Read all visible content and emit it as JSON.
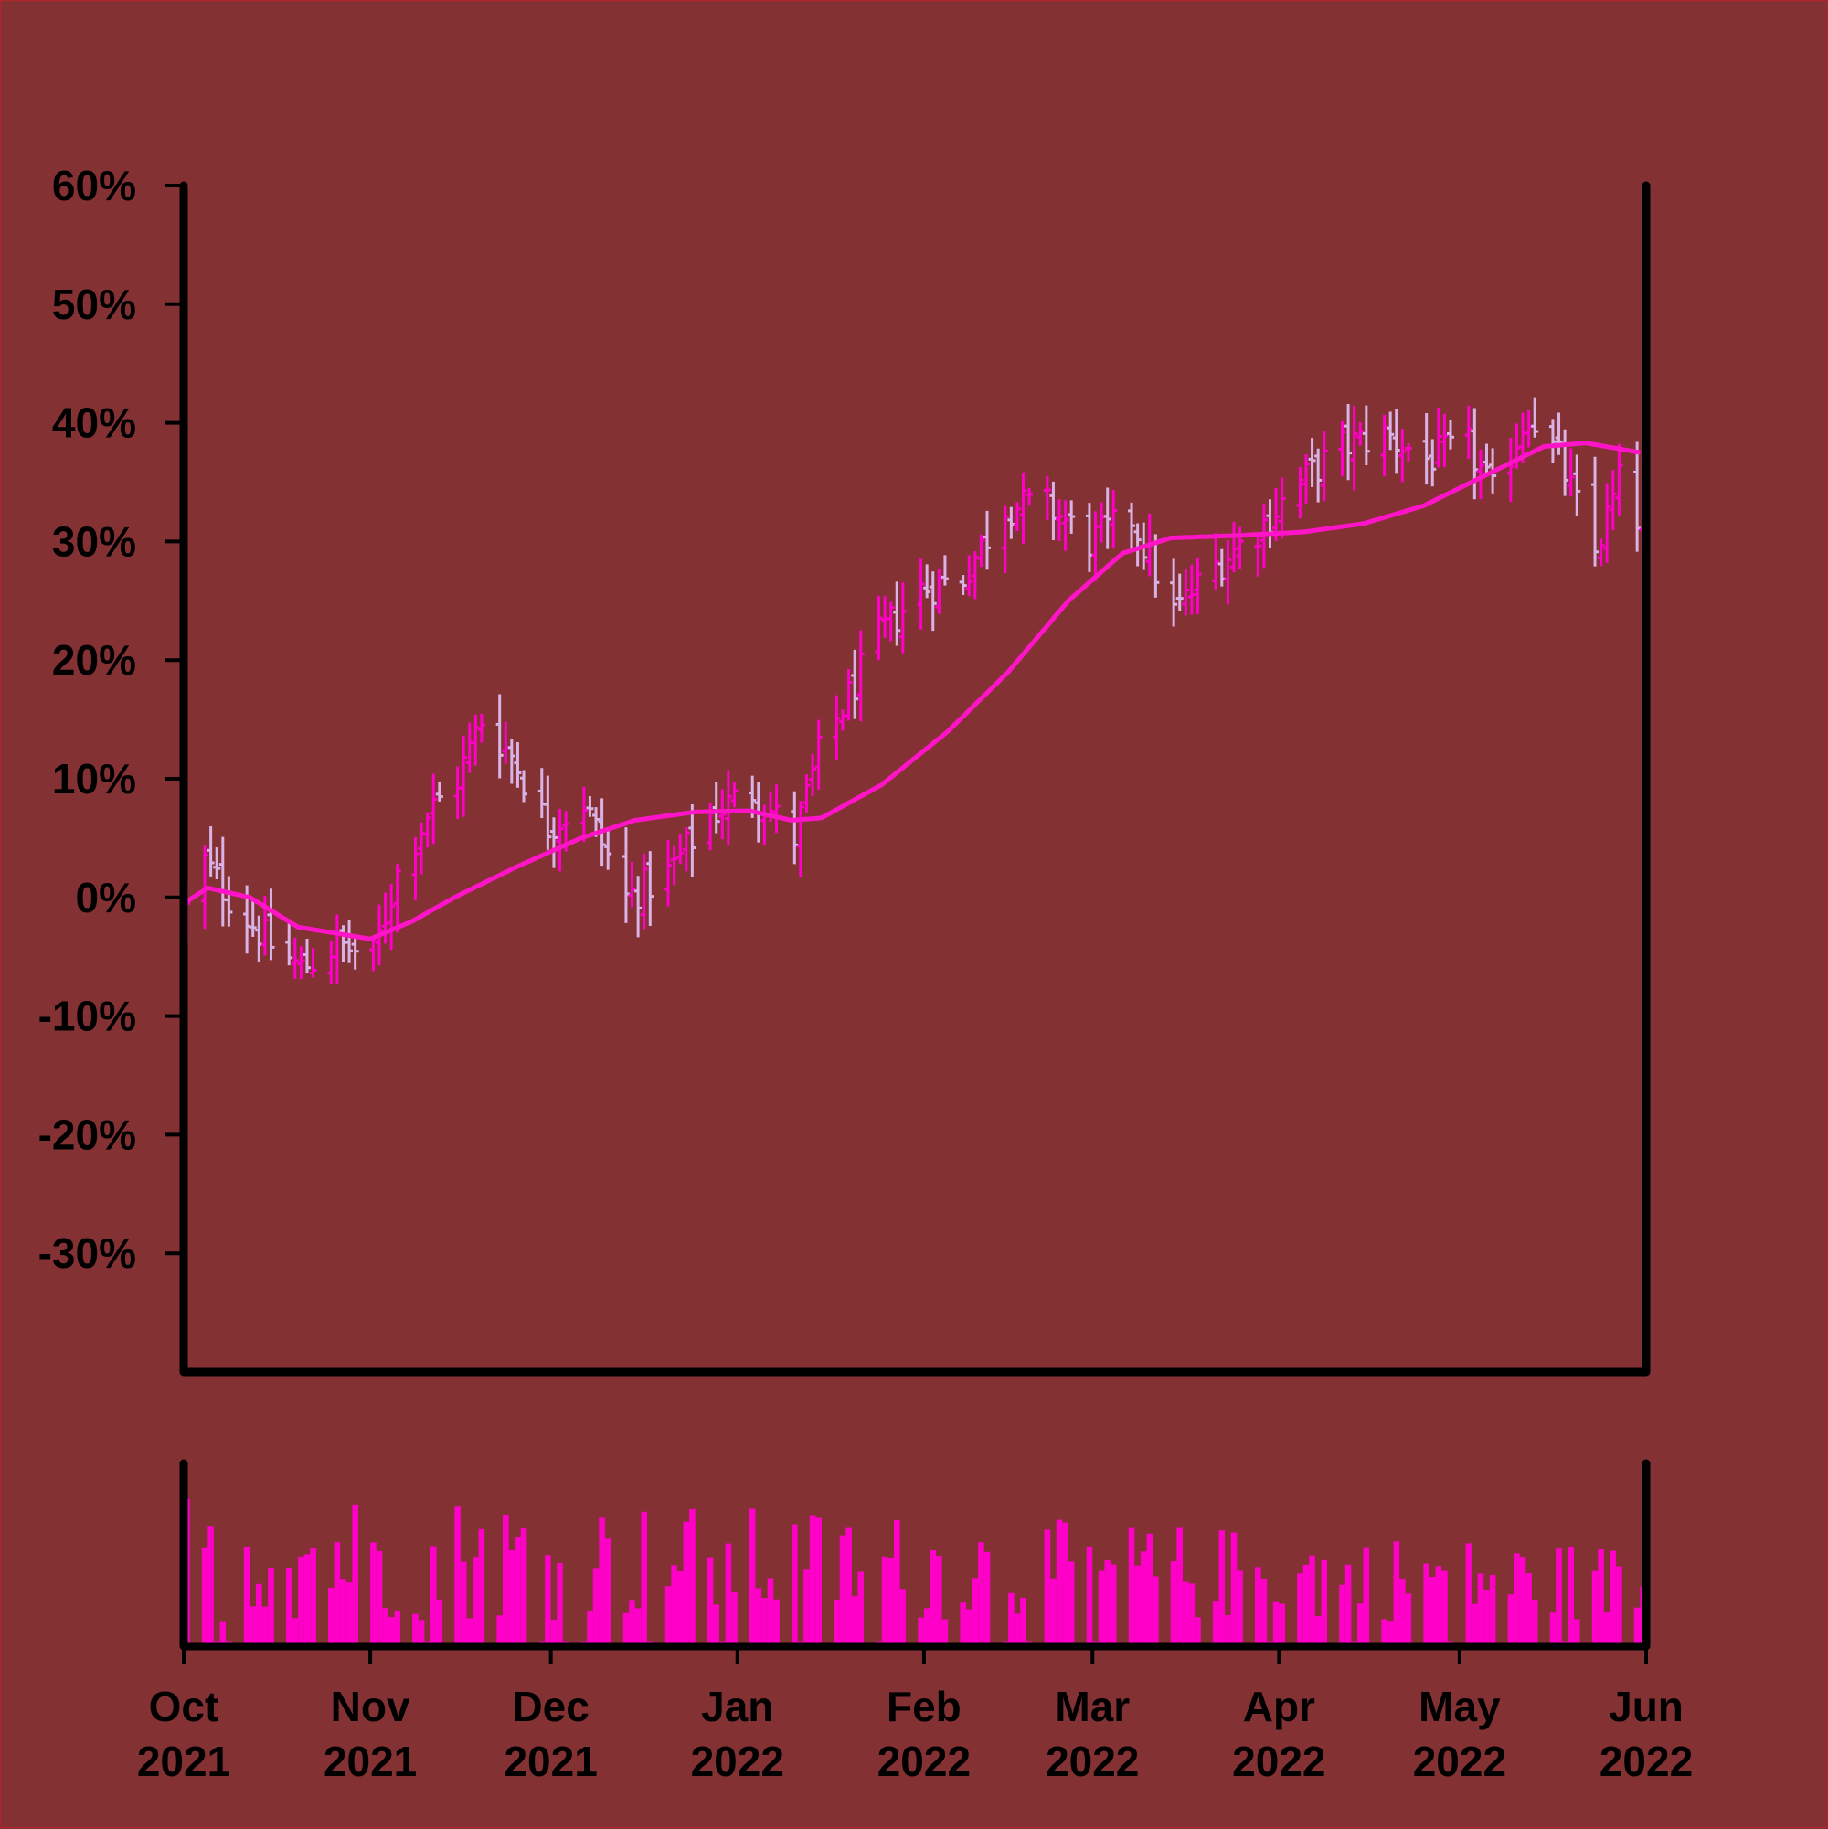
{
  "colors": {
    "background": "#843134",
    "up_bar": "#ff00c8",
    "down_bar": "#d9b3e6",
    "moving_average": "#ff14c8",
    "volume": "#ff00c8",
    "axes": "#000000"
  },
  "chart_data": {
    "type": "ohlc",
    "ylim": [
      -40,
      60
    ],
    "ytick_labels": [
      "60%",
      "50%",
      "40%",
      "30%",
      "20%",
      "10%",
      "0%",
      "-10%",
      "-20%",
      "-30%"
    ],
    "ytick_values": [
      60,
      50,
      40,
      30,
      20,
      10,
      0,
      -10,
      -20,
      -30
    ],
    "xlim": [
      "2021-10-01",
      "2022-06-01"
    ],
    "xticks": [
      {
        "date": "2021-10-01",
        "month": "Oct",
        "year": "2021"
      },
      {
        "date": "2021-11-01",
        "month": "Nov",
        "year": "2021"
      },
      {
        "date": "2021-12-01",
        "month": "Dec",
        "year": "2021"
      },
      {
        "date": "2022-01-01",
        "month": "Jan",
        "year": "2022"
      },
      {
        "date": "2022-02-01",
        "month": "Feb",
        "year": "2022"
      },
      {
        "date": "2022-03-01",
        "month": "Mar",
        "year": "2022"
      },
      {
        "date": "2022-04-01",
        "month": "Apr",
        "year": "2022"
      },
      {
        "date": "2022-05-01",
        "month": "May",
        "year": "2022"
      },
      {
        "date": "2022-06-01",
        "month": "Jun",
        "year": "2022"
      }
    ],
    "close_anchors": [
      {
        "date": "2021-10-01",
        "value": -1
      },
      {
        "date": "2021-10-04",
        "value": 3
      },
      {
        "date": "2021-10-08",
        "value": 0
      },
      {
        "date": "2021-10-15",
        "value": -4
      },
      {
        "date": "2021-10-20",
        "value": -6
      },
      {
        "date": "2021-10-26",
        "value": -4
      },
      {
        "date": "2021-11-01",
        "value": -5
      },
      {
        "date": "2021-11-05",
        "value": 2
      },
      {
        "date": "2021-11-10",
        "value": 7
      },
      {
        "date": "2021-11-15",
        "value": 10
      },
      {
        "date": "2021-11-19",
        "value": 15
      },
      {
        "date": "2021-11-24",
        "value": 12
      },
      {
        "date": "2021-11-30",
        "value": 6
      },
      {
        "date": "2021-12-06",
        "value": 8
      },
      {
        "date": "2021-12-13",
        "value": 0
      },
      {
        "date": "2021-12-20",
        "value": 2
      },
      {
        "date": "2021-12-27",
        "value": 7
      },
      {
        "date": "2022-01-03",
        "value": 9
      },
      {
        "date": "2022-01-10",
        "value": 5
      },
      {
        "date": "2022-01-14",
        "value": 12
      },
      {
        "date": "2022-01-19",
        "value": 17
      },
      {
        "date": "2022-01-24",
        "value": 22
      },
      {
        "date": "2022-01-31",
        "value": 26
      },
      {
        "date": "2022-02-07",
        "value": 27
      },
      {
        "date": "2022-02-14",
        "value": 33
      },
      {
        "date": "2022-02-21",
        "value": 33
      },
      {
        "date": "2022-02-28",
        "value": 30
      },
      {
        "date": "2022-03-07",
        "value": 32
      },
      {
        "date": "2022-03-14",
        "value": 24
      },
      {
        "date": "2022-03-21",
        "value": 28
      },
      {
        "date": "2022-03-28",
        "value": 31
      },
      {
        "date": "2022-04-04",
        "value": 35
      },
      {
        "date": "2022-04-11",
        "value": 38
      },
      {
        "date": "2022-04-18",
        "value": 39
      },
      {
        "date": "2022-04-25",
        "value": 37
      },
      {
        "date": "2022-05-02",
        "value": 38
      },
      {
        "date": "2022-05-06",
        "value": 34
      },
      {
        "date": "2022-05-12",
        "value": 41
      },
      {
        "date": "2022-05-17",
        "value": 37
      },
      {
        "date": "2022-05-23",
        "value": 29
      },
      {
        "date": "2022-05-27",
        "value": 35
      },
      {
        "date": "2022-05-31",
        "value": 31
      }
    ],
    "moving_average_anchors": [
      {
        "date": "2021-10-01",
        "value": -0.5
      },
      {
        "date": "2021-10-05",
        "value": 0.8
      },
      {
        "date": "2021-10-12",
        "value": 0
      },
      {
        "date": "2021-10-20",
        "value": -2.5
      },
      {
        "date": "2021-11-01",
        "value": -3.5
      },
      {
        "date": "2021-11-08",
        "value": -2
      },
      {
        "date": "2021-11-15",
        "value": 0
      },
      {
        "date": "2021-11-25",
        "value": 2.5
      },
      {
        "date": "2021-12-06",
        "value": 5
      },
      {
        "date": "2021-12-15",
        "value": 6.5
      },
      {
        "date": "2021-12-25",
        "value": 7.2
      },
      {
        "date": "2022-01-03",
        "value": 7.3
      },
      {
        "date": "2022-01-10",
        "value": 6.5
      },
      {
        "date": "2022-01-15",
        "value": 6.7
      },
      {
        "date": "2022-01-25",
        "value": 9.5
      },
      {
        "date": "2022-02-05",
        "value": 14
      },
      {
        "date": "2022-02-15",
        "value": 19
      },
      {
        "date": "2022-02-25",
        "value": 25
      },
      {
        "date": "2022-03-06",
        "value": 29
      },
      {
        "date": "2022-03-14",
        "value": 30.3
      },
      {
        "date": "2022-03-25",
        "value": 30.5
      },
      {
        "date": "2022-04-05",
        "value": 30.8
      },
      {
        "date": "2022-04-15",
        "value": 31.5
      },
      {
        "date": "2022-04-25",
        "value": 33
      },
      {
        "date": "2022-05-05",
        "value": 35.5
      },
      {
        "date": "2022-05-15",
        "value": 38
      },
      {
        "date": "2022-05-22",
        "value": 38.3
      },
      {
        "date": "2022-05-31",
        "value": 37.5
      }
    ],
    "volume_range": [
      0.15,
      1.0
    ],
    "grid": false,
    "legend": "none"
  }
}
